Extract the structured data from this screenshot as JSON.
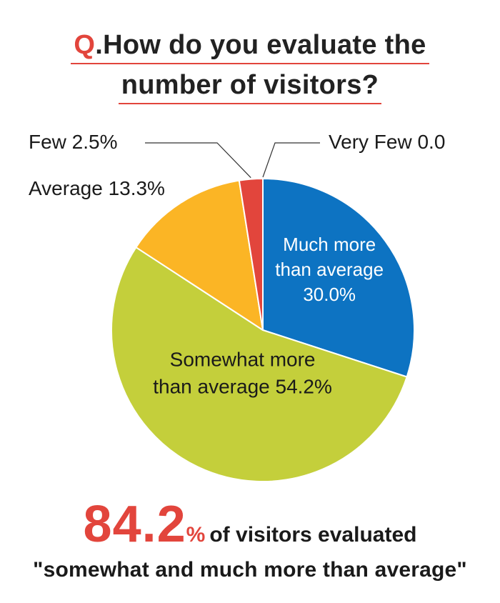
{
  "title": {
    "prefix": "Q",
    "line1": ".How do you evaluate the",
    "line2": "number of visitors?"
  },
  "colors": {
    "accent": "#e2453c",
    "much_more": "#0d73c2",
    "somewhat_more": "#c4cf3b",
    "average": "#fbb525",
    "few": "#e2453c",
    "very_few": "#9e9e9e"
  },
  "chart_data": {
    "type": "pie",
    "start": "12 o'clock, clockwise",
    "slices": [
      {
        "label_lines": [
          "Much more",
          "than average"
        ],
        "value_text": "30.0%",
        "value": 30.0,
        "color": "#0d73c2",
        "label_color": "#ffffff"
      },
      {
        "label_lines": [
          "Somewhat more",
          "than average"
        ],
        "value_text": "54.2%",
        "value": 54.2,
        "color": "#c4cf3b",
        "label_color": "#1a1a1a"
      },
      {
        "label_lines": [
          "Average"
        ],
        "value_text": "13.3%",
        "value": 13.3,
        "color": "#fbb525",
        "label_color": "#1a1a1a"
      },
      {
        "label_lines": [
          "Few"
        ],
        "value_text": "2.5%",
        "value": 2.5,
        "color": "#e2453c",
        "label_color": "#1a1a1a"
      },
      {
        "label_lines": [
          "Very Few"
        ],
        "value_text": "0.0",
        "value": 0.0,
        "color": "#9e9e9e",
        "label_color": "#1a1a1a"
      }
    ]
  },
  "summary": {
    "number": "84.2",
    "percent": "%",
    "text1": "of visitors evaluated",
    "text2": "\"somewhat and much more than average\""
  }
}
